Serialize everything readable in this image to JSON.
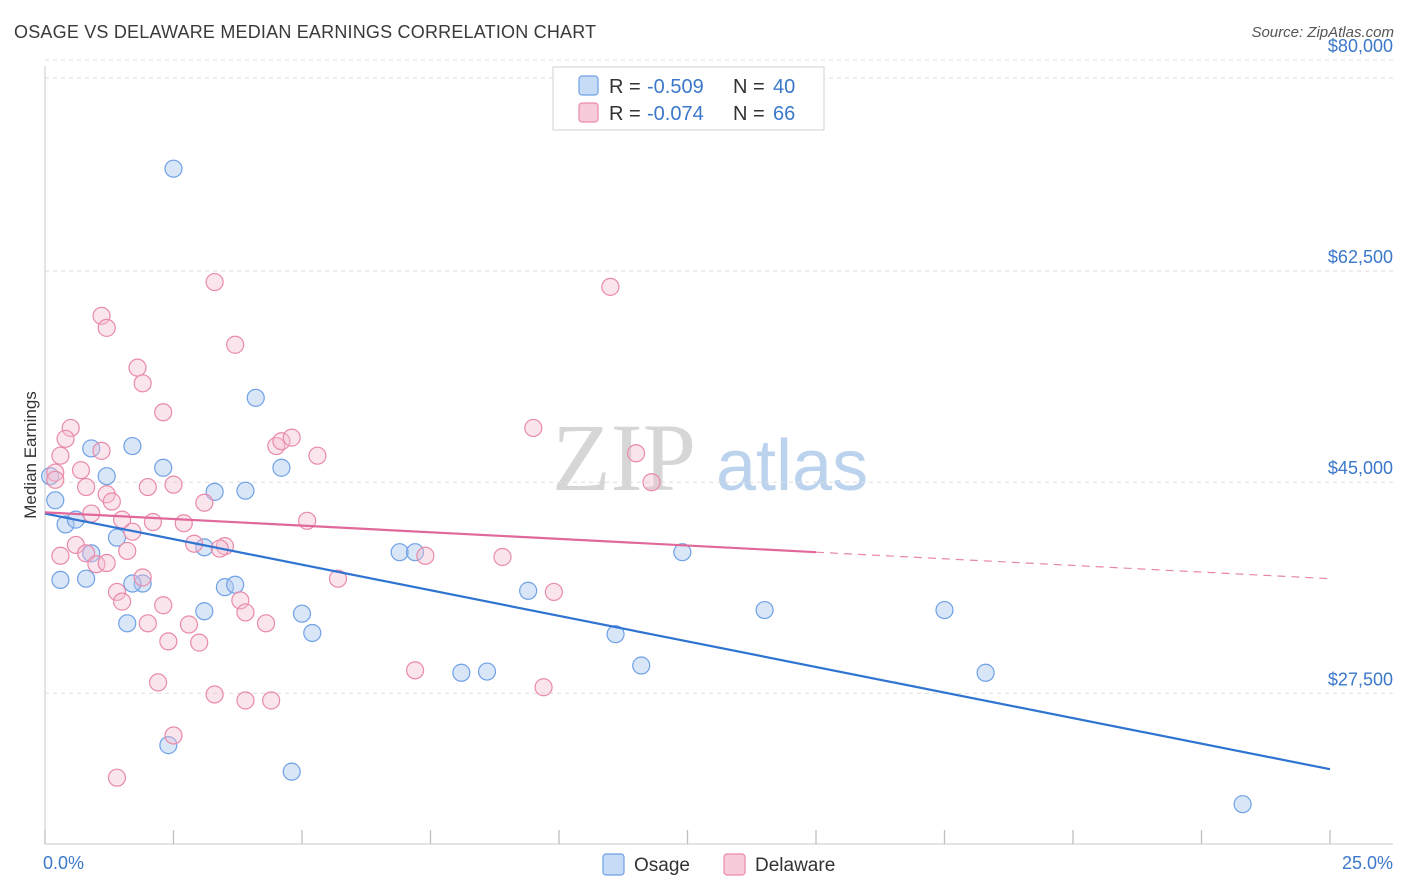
{
  "header": {
    "title": "OSAGE VS DELAWARE MEDIAN EARNINGS CORRELATION CHART",
    "source": "Source: ZipAtlas.com"
  },
  "watermark": {
    "zip": "ZIP",
    "atlas": "atlas"
  },
  "legend": {
    "rows": [
      {
        "r_label": "R =",
        "r_value": "-0.509",
        "n_label": "N =",
        "n_value": "40",
        "color": "#6fa1e6",
        "fill": "#c5dbf6"
      },
      {
        "r_label": "R =",
        "r_value": "-0.074",
        "n_label": "N =",
        "n_value": "66",
        "color": "#e98aa9",
        "fill": "#f8cbda"
      }
    ]
  },
  "bottom_legend": [
    {
      "label": "Osage",
      "fill": "#c5dbf6",
      "stroke": "#6fa1e6"
    },
    {
      "label": "Delaware",
      "fill": "#f8cbda",
      "stroke": "#e98aa9"
    }
  ],
  "chart_data": {
    "type": "scatter",
    "title": "OSAGE VS DELAWARE MEDIAN EARNINGS CORRELATION CHART",
    "xlabel": "",
    "ylabel": "Median Earnings",
    "xlim": [
      0,
      25
    ],
    "ylim": [
      15000,
      82500
    ],
    "x_tick_labels": [
      "0.0%",
      "25.0%"
    ],
    "y_ticks": [
      27500,
      45000,
      62500,
      80000
    ],
    "y_tick_labels": [
      "$27,500",
      "$45,000",
      "$62,500",
      "$80,000"
    ],
    "series": [
      {
        "name": "Osage",
        "color": "#6fa1e6",
        "trend": {
          "x": [
            0,
            25
          ],
          "y": [
            42400,
            21200
          ],
          "dashed_from": null
        },
        "points": [
          [
            0.2,
            43500
          ],
          [
            0.9,
            47800
          ],
          [
            2.5,
            71000
          ],
          [
            1.7,
            48000
          ],
          [
            4.1,
            52000
          ],
          [
            1.2,
            45500
          ],
          [
            0.4,
            41500
          ],
          [
            2.3,
            46200
          ],
          [
            3.3,
            44200
          ],
          [
            3.9,
            44300
          ],
          [
            4.6,
            46200
          ],
          [
            0.6,
            41900
          ],
          [
            1.4,
            40400
          ],
          [
            0.9,
            39100
          ],
          [
            1.9,
            36600
          ],
          [
            1.7,
            36600
          ],
          [
            3.1,
            39600
          ],
          [
            3.5,
            36300
          ],
          [
            3.7,
            36500
          ],
          [
            0.8,
            37000
          ],
          [
            0.3,
            36900
          ],
          [
            1.6,
            33300
          ],
          [
            3.1,
            34300
          ],
          [
            5.0,
            34100
          ],
          [
            5.2,
            32500
          ],
          [
            6.9,
            39200
          ],
          [
            7.2,
            39200
          ],
          [
            9.4,
            36000
          ],
          [
            11.1,
            32400
          ],
          [
            11.6,
            29800
          ],
          [
            12.4,
            39200
          ],
          [
            14.0,
            34400
          ],
          [
            17.5,
            34400
          ],
          [
            18.3,
            29200
          ],
          [
            8.1,
            29200
          ],
          [
            8.6,
            29300
          ],
          [
            2.4,
            23200
          ],
          [
            4.8,
            21000
          ],
          [
            23.3,
            18300
          ],
          [
            0.1,
            45500
          ]
        ]
      },
      {
        "name": "Delaware",
        "color": "#e98aa9",
        "trend": {
          "x": [
            0,
            25
          ],
          "y": [
            42500,
            37000
          ],
          "dashed_from": 15
        },
        "points": [
          [
            0.2,
            45800
          ],
          [
            0.3,
            47200
          ],
          [
            0.5,
            49500
          ],
          [
            0.4,
            48600
          ],
          [
            0.7,
            46000
          ],
          [
            0.8,
            44600
          ],
          [
            0.9,
            42400
          ],
          [
            1.1,
            47600
          ],
          [
            1.2,
            44000
          ],
          [
            1.3,
            43400
          ],
          [
            1.5,
            41900
          ],
          [
            1.7,
            40900
          ],
          [
            1.8,
            54500
          ],
          [
            1.9,
            53200
          ],
          [
            2.0,
            44600
          ],
          [
            2.1,
            41700
          ],
          [
            2.3,
            50800
          ],
          [
            2.5,
            44800
          ],
          [
            2.7,
            41600
          ],
          [
            2.9,
            39900
          ],
          [
            3.1,
            43300
          ],
          [
            3.5,
            39700
          ],
          [
            3.4,
            39500
          ],
          [
            3.8,
            35200
          ],
          [
            3.9,
            34200
          ],
          [
            4.3,
            33300
          ],
          [
            4.5,
            48000
          ],
          [
            4.6,
            48400
          ],
          [
            4.8,
            48700
          ],
          [
            5.1,
            41800
          ],
          [
            5.3,
            47200
          ],
          [
            0.3,
            38900
          ],
          [
            0.6,
            39800
          ],
          [
            0.8,
            39100
          ],
          [
            1.0,
            38200
          ],
          [
            1.2,
            38300
          ],
          [
            1.4,
            35900
          ],
          [
            1.6,
            39300
          ],
          [
            2.0,
            33300
          ],
          [
            2.4,
            31800
          ],
          [
            2.8,
            33200
          ],
          [
            3.0,
            31700
          ],
          [
            3.3,
            27400
          ],
          [
            3.9,
            26900
          ],
          [
            4.4,
            26900
          ],
          [
            2.2,
            28400
          ],
          [
            5.7,
            37000
          ],
          [
            2.5,
            24000
          ],
          [
            1.4,
            20500
          ],
          [
            1.1,
            58800
          ],
          [
            1.2,
            57800
          ],
          [
            3.3,
            61600
          ],
          [
            3.7,
            56400
          ],
          [
            9.5,
            49500
          ],
          [
            9.9,
            35900
          ],
          [
            11.0,
            61200
          ],
          [
            11.5,
            47400
          ],
          [
            11.8,
            45000
          ],
          [
            7.2,
            29400
          ],
          [
            9.7,
            28000
          ],
          [
            7.4,
            38900
          ],
          [
            8.9,
            38800
          ],
          [
            2.3,
            34800
          ],
          [
            1.5,
            35100
          ],
          [
            0.2,
            45200
          ],
          [
            1.9,
            37100
          ]
        ]
      }
    ]
  }
}
